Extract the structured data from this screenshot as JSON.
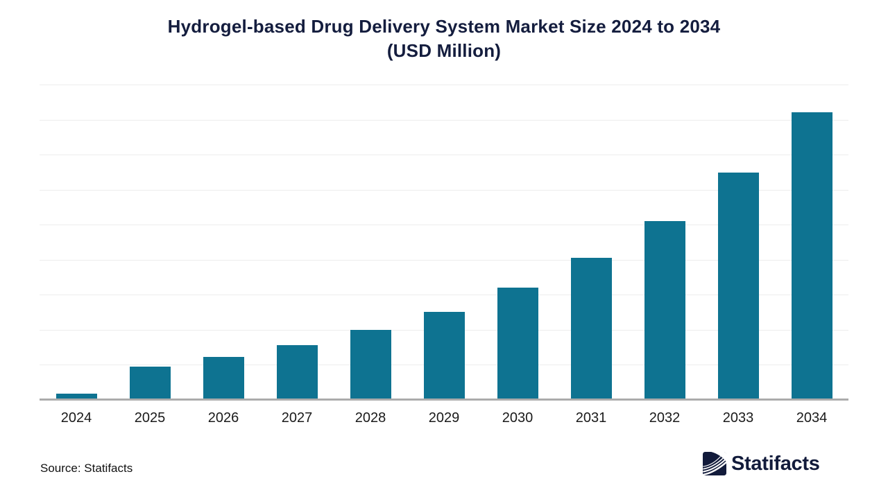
{
  "chart_data": {
    "type": "bar",
    "title": "Hydrogel-based Drug Delivery System Market Size 2024 to 2034",
    "subtitle": "(USD Million)",
    "categories": [
      "2024",
      "2025",
      "2026",
      "2027",
      "2028",
      "2029",
      "2030",
      "2031",
      "2032",
      "2033",
      "2034"
    ],
    "values": [
      180,
      960,
      1230,
      1555,
      1990,
      2520,
      3210,
      4050,
      5110,
      6480,
      8210
    ],
    "unit": "USD Million",
    "xlabel": "",
    "ylabel": "",
    "ylim": [
      0,
      9000
    ],
    "gridline_interval": 1000,
    "grid": "horizontal",
    "y_tick_labels_visible": false,
    "legend": "none",
    "bar_color": "#0e7391"
  },
  "footer": {
    "source": "Source: Statifacts"
  },
  "logo": {
    "text": "Statifacts",
    "icon": "statifacts-wave-logo-icon"
  },
  "colors": {
    "title": "#141d3e",
    "bar": "#0e7391",
    "gridline": "#ededed",
    "axis_line": "#ababab",
    "tick_label": "#1a1a1a",
    "logo_navy": "#121b3b"
  }
}
